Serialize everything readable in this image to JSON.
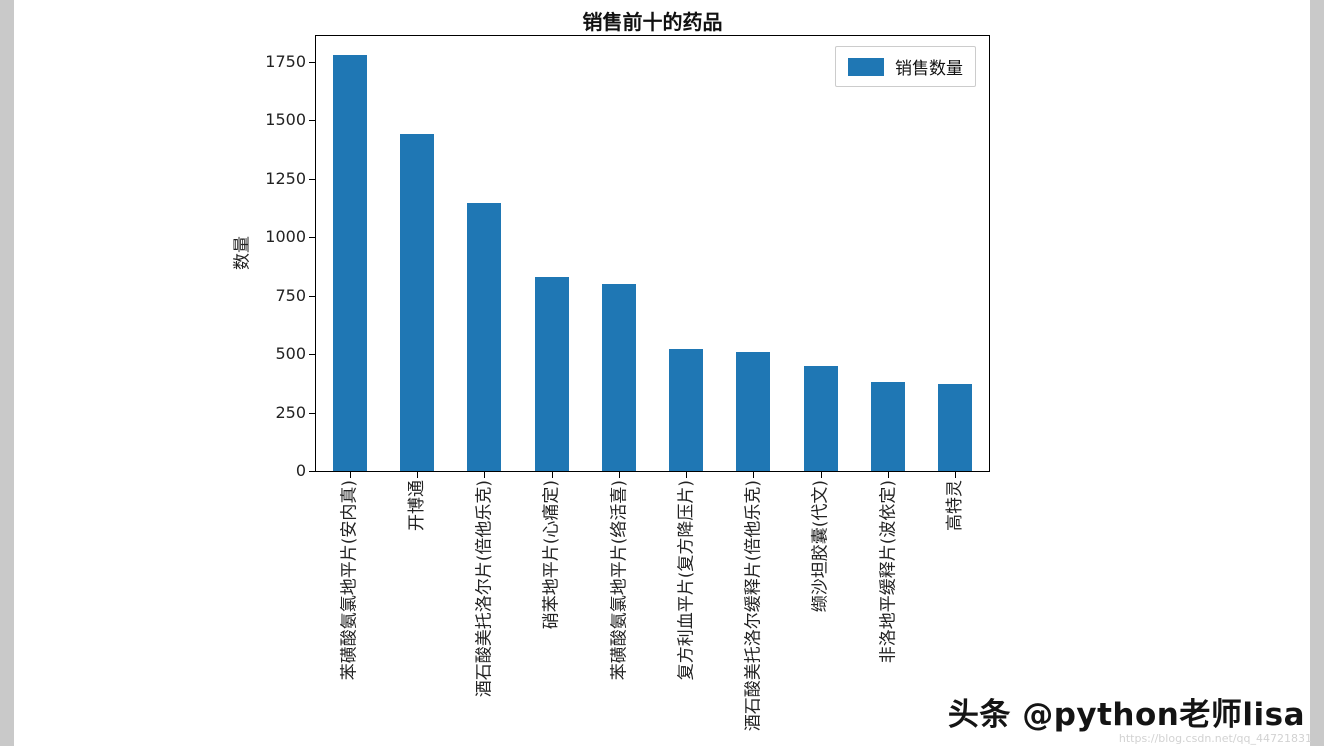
{
  "chart_data": {
    "type": "bar",
    "title": "销售前十的药品",
    "xlabel": "",
    "ylabel": "数量",
    "legend": [
      "销售数量"
    ],
    "legend_position": "upper right",
    "bar_color": "#1f77b4",
    "grid": false,
    "categories": [
      "苯磺酸氨氯地平片(安内真)",
      "开博通",
      "酒石酸美托洛尔片(倍他乐克)",
      "硝苯地平片(心痛定)",
      "苯磺酸氨氯地平片(络活喜)",
      "复方利血平片(复方降压片)",
      "酒石酸美托洛尔缓释片(倍他乐克)",
      "缬沙坦胶囊(代文)",
      "非洛地平缓释片(波依定)",
      "高特灵"
    ],
    "values": [
      1780,
      1440,
      1145,
      830,
      800,
      520,
      510,
      450,
      382,
      374
    ],
    "yticks": [
      0,
      250,
      500,
      750,
      1000,
      1250,
      1500,
      1750
    ],
    "ylim": [
      0,
      1860
    ],
    "bar_width_ratio": 0.5
  },
  "watermark": {
    "main": "头条 @python老师lisa",
    "url": "https://blog.csdn.net/qq_44721831"
  }
}
